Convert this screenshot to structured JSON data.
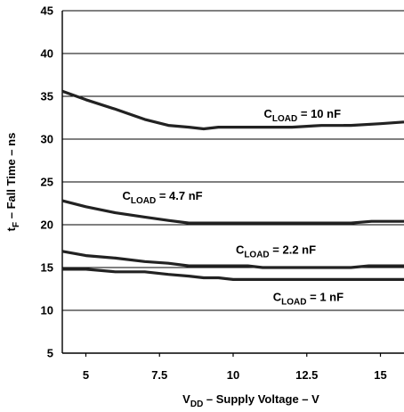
{
  "chart_data": {
    "type": "line",
    "title": "",
    "xlabel": {
      "main": "V",
      "sub": "DD",
      "rest": " – Supply Voltage – V"
    },
    "ylabel": {
      "main": "t",
      "sub": "F",
      "rest": " – Fall Time – ns"
    },
    "xlim": [
      4.2,
      15.8
    ],
    "ylim": [
      5,
      45
    ],
    "x_ticks": [
      5,
      7.5,
      10,
      12.5,
      15
    ],
    "x_tick_labels": [
      "5",
      "7.5",
      "10",
      "12.5",
      "15"
    ],
    "y_ticks": [
      5,
      10,
      15,
      20,
      25,
      30,
      35,
      40,
      45
    ],
    "y_tick_labels": [
      "5",
      "10",
      "15",
      "20",
      "25",
      "30",
      "35",
      "40",
      "45"
    ],
    "grid": "horizontal",
    "line_color": "#222222",
    "series": [
      {
        "label": {
          "main": "C",
          "sub": "LOAD",
          "rest": " = 10 nF"
        },
        "x": [
          4.2,
          5,
          6,
          7,
          7.8,
          8.5,
          9,
          9.5,
          10,
          11,
          12,
          13,
          14,
          15,
          15.8
        ],
        "y": [
          35.6,
          34.6,
          33.5,
          32.3,
          31.6,
          31.4,
          31.2,
          31.4,
          31.4,
          31.4,
          31.4,
          31.6,
          31.6,
          31.8,
          32.0
        ]
      },
      {
        "label": {
          "main": "C",
          "sub": "LOAD",
          "rest": " = 4.7 nF"
        },
        "x": [
          4.2,
          5,
          6,
          7,
          7.8,
          8.5,
          9,
          10,
          11,
          12,
          13,
          14,
          14.7,
          15.8
        ],
        "y": [
          22.8,
          22.1,
          21.4,
          20.9,
          20.5,
          20.2,
          20.2,
          20.2,
          20.2,
          20.2,
          20.2,
          20.2,
          20.4,
          20.4
        ]
      },
      {
        "label": {
          "main": "C",
          "sub": "LOAD",
          "rest": " = 2.2 nF"
        },
        "x": [
          4.2,
          5,
          6,
          7,
          7.8,
          8.5,
          9,
          10,
          10.5,
          11,
          12,
          13,
          14,
          14.6,
          15.8
        ],
        "y": [
          16.9,
          16.4,
          16.1,
          15.7,
          15.5,
          15.2,
          15.2,
          15.2,
          15.2,
          15.0,
          15.0,
          15.0,
          15.0,
          15.2,
          15.2
        ]
      },
      {
        "label": {
          "main": "C",
          "sub": "LOAD",
          "rest": " = 1 nF"
        },
        "x": [
          4.2,
          5,
          6,
          7,
          7.8,
          8.5,
          9,
          9.5,
          10,
          11,
          12,
          13,
          14,
          15,
          15.8
        ],
        "y": [
          14.8,
          14.8,
          14.5,
          14.5,
          14.2,
          14.0,
          13.8,
          13.8,
          13.6,
          13.6,
          13.6,
          13.6,
          13.6,
          13.6,
          13.6
        ]
      }
    ]
  }
}
